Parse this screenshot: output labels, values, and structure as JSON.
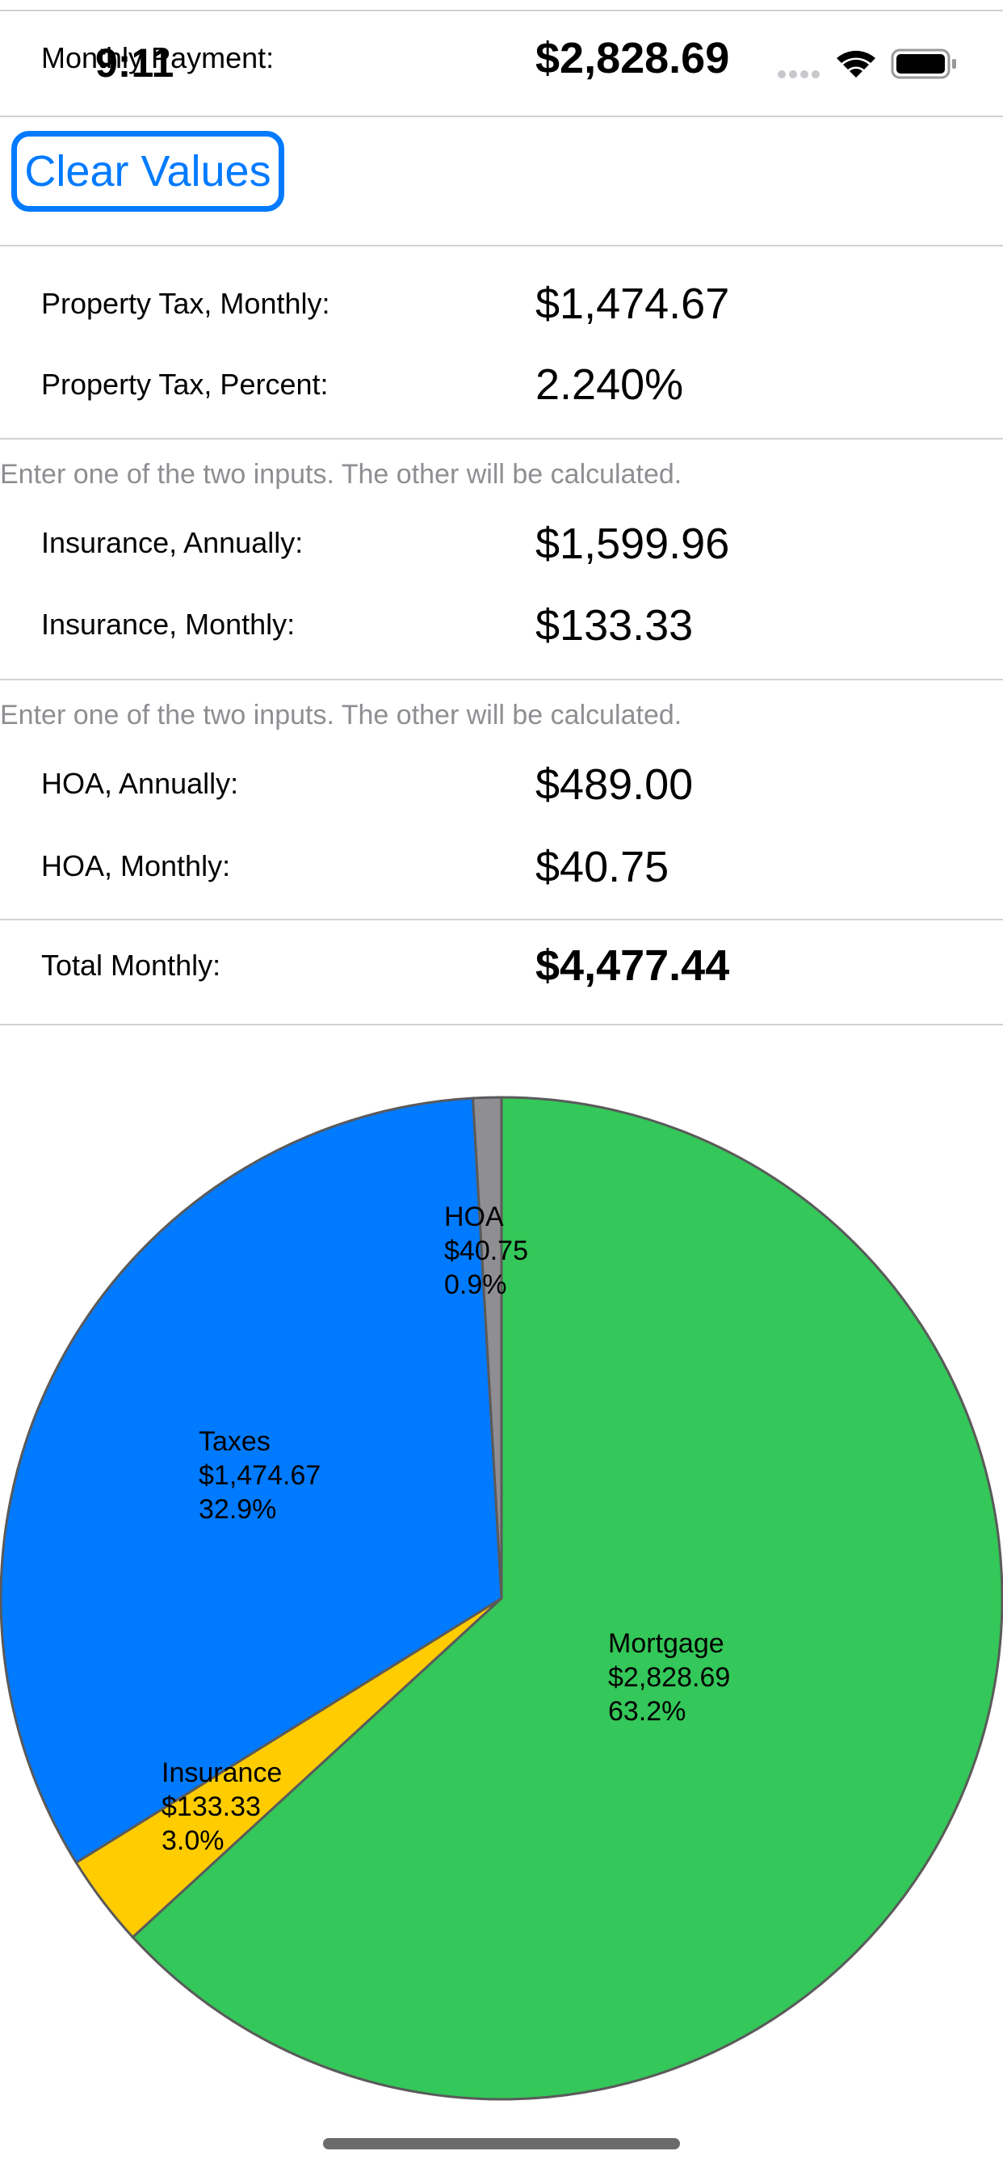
{
  "status_bar": {
    "time": "9:11"
  },
  "monthly_payment": {
    "label": "Monthly Payment:",
    "value": "$2,828.69"
  },
  "actions": {
    "clear_label": "Clear Values"
  },
  "property_tax": {
    "monthly_label": "Property Tax, Monthly:",
    "monthly_value": "$1,474.67",
    "percent_label": "Property Tax, Percent:",
    "percent_value": "2.240%"
  },
  "insurance": {
    "hint": "Enter one of the two inputs. The other will be calculated.",
    "annual_label": "Insurance, Annually:",
    "annual_value": "$1,599.96",
    "monthly_label": "Insurance, Monthly:",
    "monthly_value": "$133.33"
  },
  "hoa": {
    "hint": "Enter one of the two inputs. The other will be calculated.",
    "annual_label": "HOA, Annually:",
    "annual_value": "$489.00",
    "monthly_label": "HOA, Monthly:",
    "monthly_value": "$40.75"
  },
  "total": {
    "label": "Total Monthly:",
    "value": "$4,477.44"
  },
  "colors": {
    "accent": "#007aff",
    "mortgage": "#34c759",
    "taxes": "#007aff",
    "insurance": "#ffcc00",
    "hoa": "#8e8e93"
  },
  "chart_data": {
    "type": "pie",
    "slices": [
      {
        "name": "Mortgage",
        "amount": "$2,828.69",
        "percent": "63.2%",
        "value": 2828.69,
        "color": "#34c759"
      },
      {
        "name": "Insurance",
        "amount": "$133.33",
        "percent": "3.0%",
        "value": 133.33,
        "color": "#ffcc00"
      },
      {
        "name": "Taxes",
        "amount": "$1,474.67",
        "percent": "32.9%",
        "value": 1474.67,
        "color": "#007aff"
      },
      {
        "name": "HOA",
        "amount": "$40.75",
        "percent": "0.9%",
        "value": 40.75,
        "color": "#8e8e93"
      }
    ]
  }
}
